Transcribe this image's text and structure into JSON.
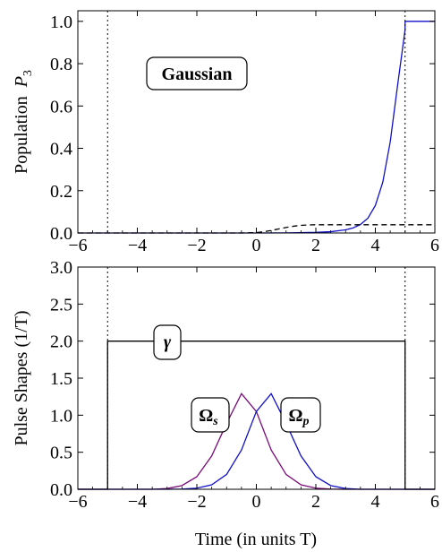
{
  "chart_data": [
    {
      "type": "line",
      "ylabel": "Population",
      "ylabel_var": "P",
      "ylabel_sub": "3",
      "xlim": [
        -6,
        6
      ],
      "ylim": [
        0,
        1.05
      ],
      "xticks": [
        "−6",
        "−4",
        "−2",
        "0",
        "2",
        "4",
        "6"
      ],
      "yticks": [
        "0.0",
        "0.2",
        "0.4",
        "0.6",
        "0.8",
        "1.0"
      ],
      "annotation": "Gaussian",
      "vlines_dotted": [
        -5,
        5
      ],
      "series": [
        {
          "color": "#1010c8",
          "style": "solid",
          "x": [
            -6,
            0,
            1,
            2,
            2.5,
            3,
            3.25,
            3.5,
            3.75,
            4,
            4.25,
            4.5,
            4.75,
            5,
            5,
            6
          ],
          "y": [
            0,
            0,
            0.0005,
            0.003,
            0.006,
            0.015,
            0.024,
            0.04,
            0.07,
            0.13,
            0.24,
            0.43,
            0.7,
            0.96,
            1.0,
            1.0
          ]
        },
        {
          "color": "#000000",
          "style": "dashed",
          "x": [
            -6,
            -0.5,
            0,
            0.25,
            0.5,
            0.75,
            1,
            1.25,
            1.5,
            1.75,
            2,
            6
          ],
          "y": [
            0,
            0,
            0.002,
            0.006,
            0.012,
            0.019,
            0.026,
            0.032,
            0.036,
            0.038,
            0.039,
            0.039
          ]
        }
      ]
    },
    {
      "type": "line",
      "ylabel": "Pulse Shapes (1/T)",
      "xlabel": "Time (in units T)",
      "xlim": [
        -6,
        6
      ],
      "ylim": [
        0,
        3.0
      ],
      "xticks": [
        "−6",
        "−4",
        "−2",
        "0",
        "2",
        "4",
        "6"
      ],
      "yticks": [
        "0.0",
        "0.5",
        "1.0",
        "1.5",
        "2.0",
        "2.5",
        "3.0"
      ],
      "vlines_dotted": [
        -5,
        5
      ],
      "labels": {
        "gamma": "γ",
        "omega_s": "Ω",
        "omega_s_sub": "s",
        "omega_p": "Ω",
        "omega_p_sub": "p"
      },
      "series": [
        {
          "name": "Ω_s",
          "color": "#7a0a7a",
          "x": [
            -6,
            -3.5,
            -3,
            -2.5,
            -2,
            -1.5,
            -1,
            -0.5,
            0,
            0.5,
            1,
            1.5,
            2,
            2.5,
            3,
            6
          ],
          "y": [
            0,
            0,
            0.01,
            0.05,
            0.17,
            0.45,
            0.89,
            1.29,
            1.05,
            0.53,
            0.2,
            0.06,
            0.015,
            0.003,
            0,
            0
          ]
        },
        {
          "name": "Ω_p",
          "color": "#1010c8",
          "x": [
            -6,
            -3,
            -2.5,
            -2,
            -1.5,
            -1,
            -0.5,
            0,
            0.5,
            1,
            1.5,
            2,
            2.5,
            3,
            3.5,
            6
          ],
          "y": [
            0,
            0,
            0.003,
            0.015,
            0.06,
            0.2,
            0.53,
            1.05,
            1.29,
            0.89,
            0.45,
            0.17,
            0.05,
            0.01,
            0,
            0
          ]
        },
        {
          "name": "γ",
          "color": "#000000",
          "x": [
            -6,
            -5,
            -5,
            5,
            5,
            6
          ],
          "y": [
            0,
            0,
            2.0,
            2.0,
            0,
            0
          ]
        }
      ]
    }
  ]
}
